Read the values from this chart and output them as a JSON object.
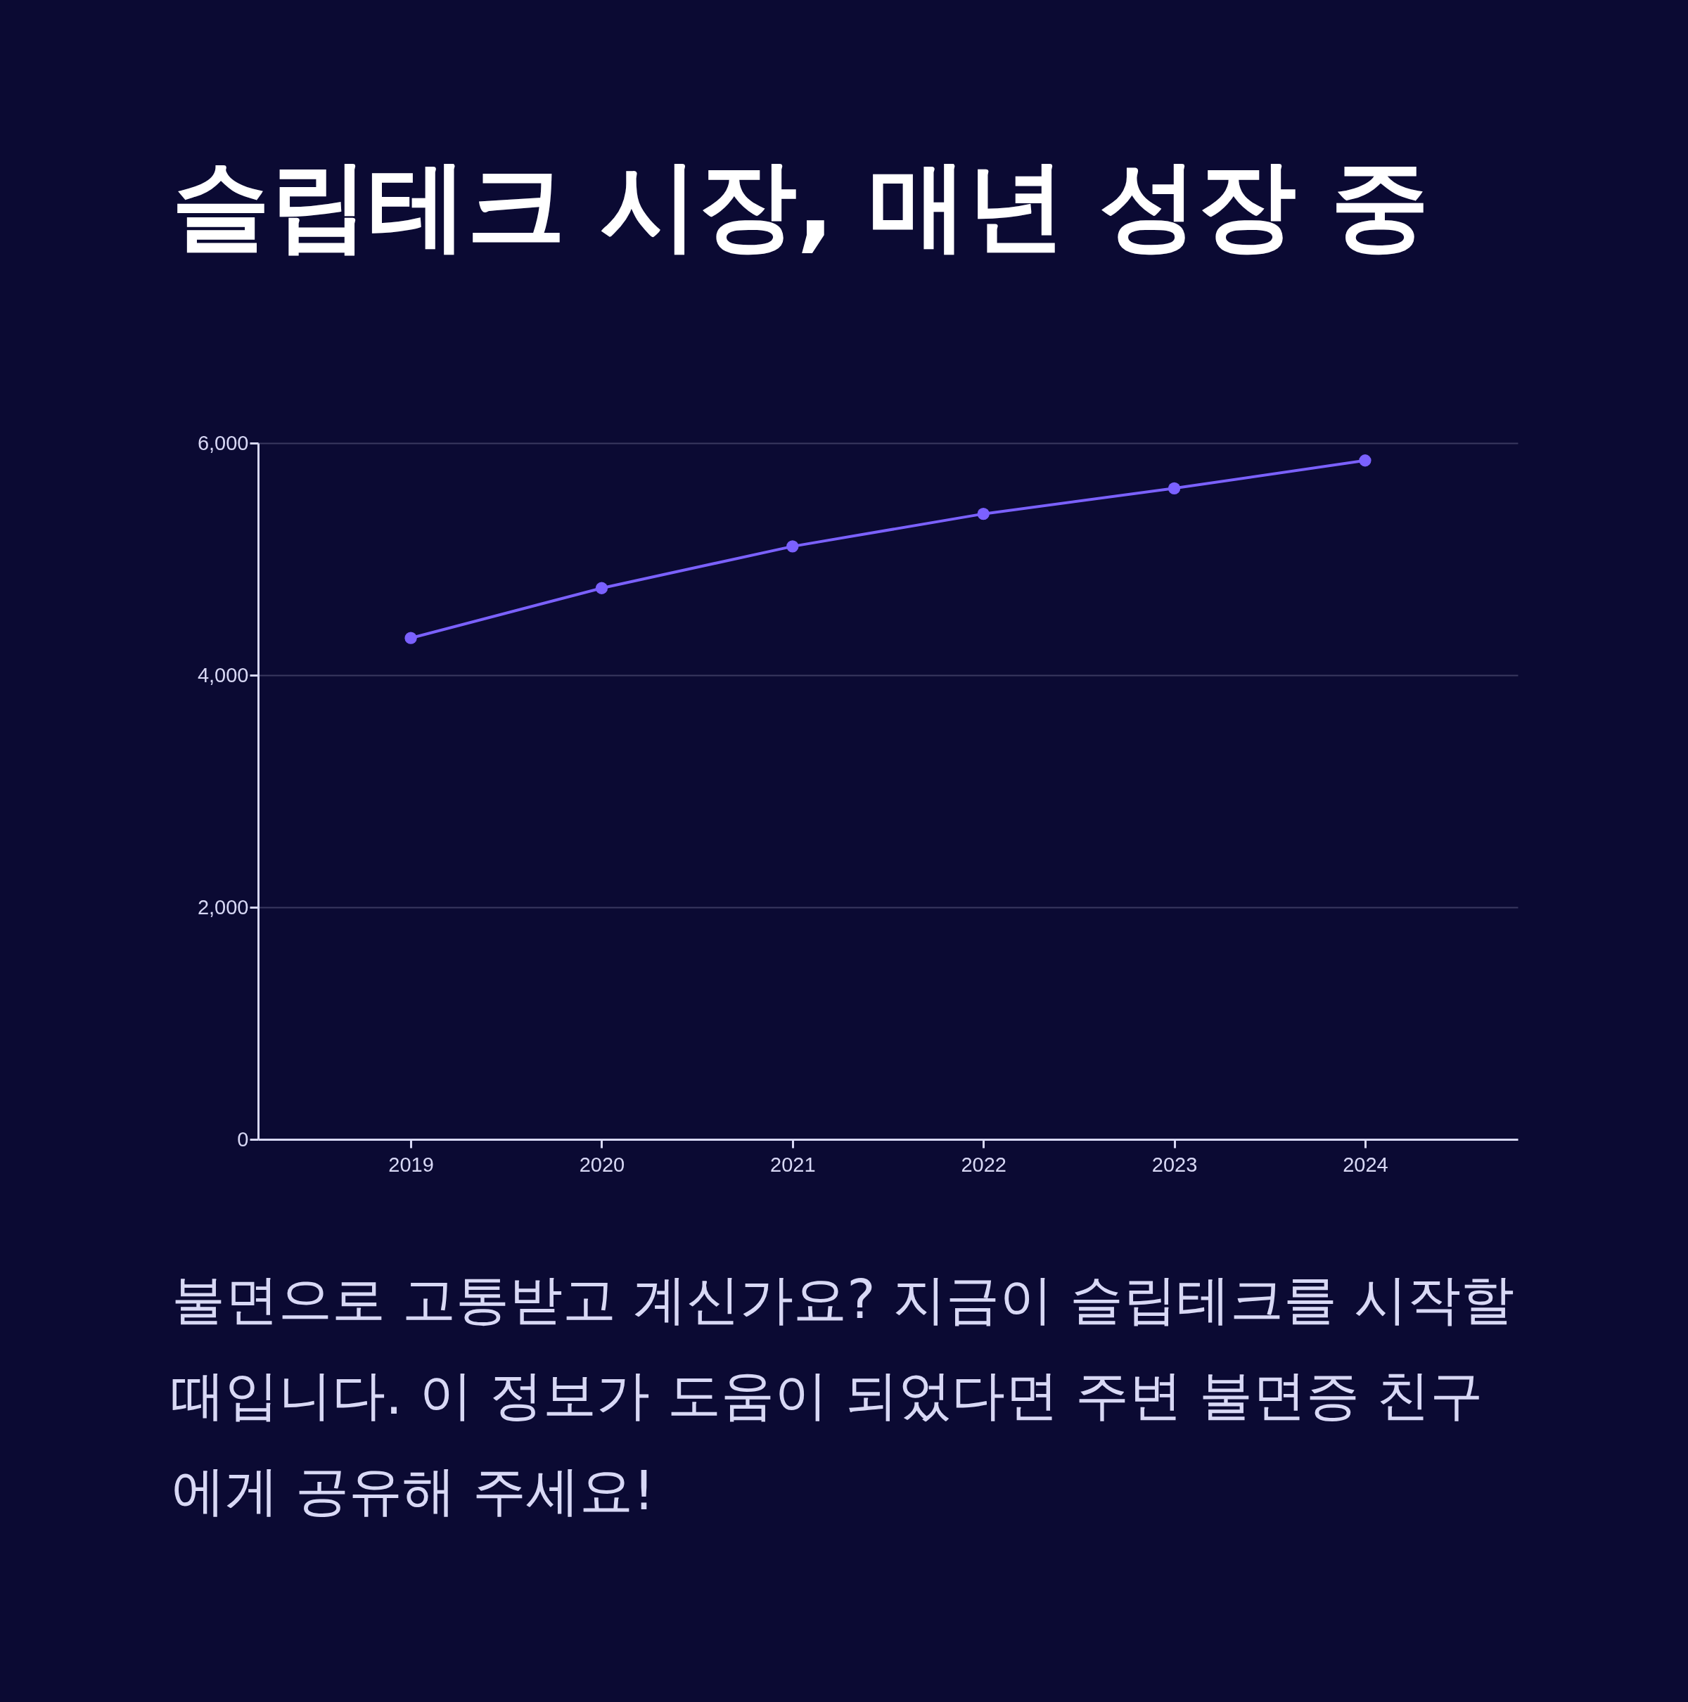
{
  "chart_data": {
    "type": "line",
    "title": "슬립테크 시장, 매년 성장 중",
    "categories": [
      "2019",
      "2020",
      "2021",
      "2022",
      "2023",
      "2024"
    ],
    "series": [
      {
        "color": "#7b61ff",
        "values": [
          4320,
          4750,
          5110,
          5390,
          5610,
          5850
        ]
      }
    ],
    "ylim": [
      0,
      6000
    ],
    "yticks": [
      0,
      {
        "value": 2000,
        "label": "2,000"
      },
      {
        "value": 4000,
        "label": "4,000"
      },
      {
        "value": 6000,
        "label": "6,000"
      }
    ],
    "grid": "y",
    "marker": "circle",
    "line_style": "solid",
    "annotations": [
      "불면으로 고통받고 계신가요? 지금이 슬립테크를 시작할 때입니다. 이 정보가 도움이 되었다면 주변 불면증 친구에게 공유해 주세요!"
    ]
  }
}
